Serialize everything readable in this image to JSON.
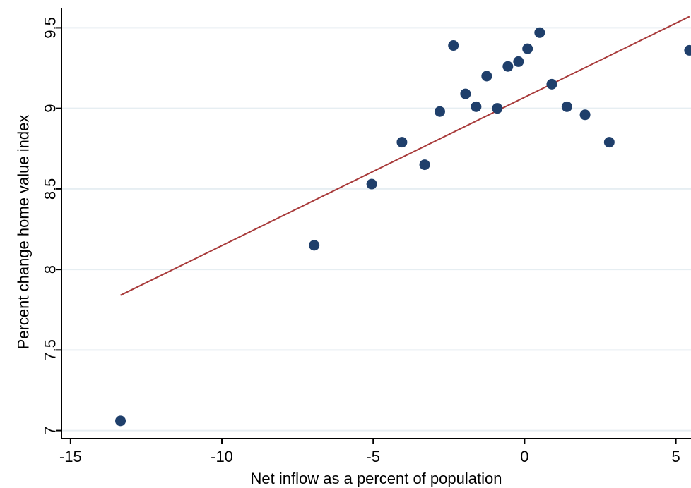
{
  "chart_data": {
    "type": "scatter",
    "xlabel": "Net inflow as a percent of population",
    "ylabel": "Percent change home value index",
    "xlim": [
      -15.3,
      5.5
    ],
    "ylim": [
      6.95,
      9.62
    ],
    "xticks": [
      -15,
      -10,
      -5,
      0,
      5
    ],
    "xtick_labels": [
      "-15",
      "-10",
      "-5",
      "0",
      "5"
    ],
    "yticks": [
      7,
      7.5,
      8,
      8.5,
      9,
      9.5
    ],
    "ytick_labels": [
      "7",
      "7.5",
      "8",
      "8.5",
      "9",
      "9.5"
    ],
    "grid": "horizontal",
    "legend": "none",
    "points": [
      {
        "x": -13.35,
        "y": 7.06
      },
      {
        "x": -6.95,
        "y": 8.15
      },
      {
        "x": -5.05,
        "y": 8.53
      },
      {
        "x": -4.05,
        "y": 8.79
      },
      {
        "x": -3.3,
        "y": 8.65
      },
      {
        "x": -2.8,
        "y": 8.98
      },
      {
        "x": -2.35,
        "y": 9.39
      },
      {
        "x": -1.95,
        "y": 9.09
      },
      {
        "x": -1.6,
        "y": 9.01
      },
      {
        "x": -1.25,
        "y": 9.2
      },
      {
        "x": -0.9,
        "y": 9.0
      },
      {
        "x": -0.55,
        "y": 9.26
      },
      {
        "x": -0.2,
        "y": 9.29
      },
      {
        "x": 0.1,
        "y": 9.37
      },
      {
        "x": 0.5,
        "y": 9.47
      },
      {
        "x": 0.9,
        "y": 9.15
      },
      {
        "x": 1.4,
        "y": 9.01
      },
      {
        "x": 2.0,
        "y": 8.96
      },
      {
        "x": 2.8,
        "y": 8.79
      },
      {
        "x": 5.45,
        "y": 9.36
      }
    ],
    "fit_line": {
      "x": [
        -13.35,
        5.45
      ],
      "y": [
        7.84,
        9.57
      ]
    },
    "colors": {
      "points": "#1f3f6b",
      "fit_line": "#a83a3a",
      "grid": "#e6eef2",
      "axis": "#000000"
    }
  }
}
